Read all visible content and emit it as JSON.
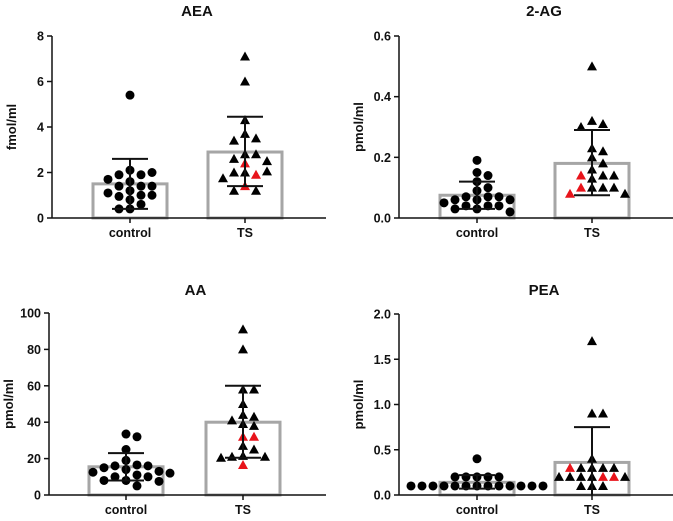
{
  "colors": {
    "marker": "#000000",
    "highlight": "#e8141b",
    "bar": "#a6a6a6"
  },
  "chart_data": [
    {
      "type": "bar",
      "title": "AEA",
      "ylabel": "fmol/ml",
      "ylim": [
        0,
        8
      ],
      "yticks": [
        "0",
        "2",
        "4",
        "6",
        "8"
      ],
      "ytick_values": [
        0,
        2,
        4,
        6,
        8
      ],
      "categories": [
        "control",
        "TS"
      ],
      "groups": [
        {
          "name": "control",
          "marker": "circle",
          "mean": 1.5,
          "error_bar": [
            0.4,
            2.6
          ],
          "values": [
            5.4,
            2.1,
            1.9,
            1.9,
            2.0,
            1.6,
            1.7,
            1.4,
            1.4,
            1.4,
            1.2,
            1.1,
            1.0,
            0.95,
            1.0,
            0.8,
            0.6,
            0.4,
            0.4
          ],
          "highlighted": []
        },
        {
          "name": "TS",
          "marker": "triangle",
          "mean": 2.9,
          "error_bar": [
            1.4,
            4.45
          ],
          "values": [
            7.1,
            6.0,
            4.3,
            3.7,
            3.5,
            3.4,
            2.8,
            2.8,
            2.6,
            2.4,
            2.5,
            2.0,
            1.9,
            2.0,
            2.05,
            1.75,
            1.4,
            1.2,
            1.2
          ],
          "highlighted": [
            9,
            12,
            16
          ]
        }
      ]
    },
    {
      "type": "bar",
      "title": "2-AG",
      "ylabel": "pmol/ml",
      "ylim": [
        0,
        0.6
      ],
      "yticks": [
        "0.0",
        "0.2",
        "0.4",
        "0.6"
      ],
      "ytick_values": [
        0,
        0.2,
        0.4,
        0.6
      ],
      "categories": [
        "control",
        "TS"
      ],
      "groups": [
        {
          "name": "control",
          "marker": "circle",
          "mean": 0.075,
          "error_bar": [
            0.03,
            0.12
          ],
          "values": [
            0.19,
            0.15,
            0.14,
            0.12,
            0.1,
            0.09,
            0.07,
            0.07,
            0.07,
            0.06,
            0.06,
            0.06,
            0.05,
            0.04,
            0.04,
            0.04,
            0.03,
            0.03,
            0.02
          ],
          "highlighted": []
        },
        {
          "name": "TS",
          "marker": "triangle",
          "mean": 0.18,
          "error_bar": [
            0.075,
            0.29
          ],
          "values": [
            0.5,
            0.32,
            0.31,
            0.3,
            0.23,
            0.22,
            0.2,
            0.18,
            0.16,
            0.14,
            0.14,
            0.14,
            0.13,
            0.1,
            0.1,
            0.1,
            0.1,
            0.08,
            0.08
          ],
          "highlighted": [
            10,
            15,
            17
          ]
        }
      ]
    },
    {
      "type": "bar",
      "title": "AA",
      "ylabel": "pmol/ml",
      "ylim": [
        0,
        100
      ],
      "yticks": [
        "0",
        "20",
        "40",
        "60",
        "80",
        "100"
      ],
      "ytick_values": [
        0,
        20,
        40,
        60,
        80,
        100
      ],
      "categories": [
        "control",
        "TS"
      ],
      "groups": [
        {
          "name": "control",
          "marker": "circle",
          "mean": 15.5,
          "error_bar": [
            8,
            23
          ],
          "values": [
            33.5,
            32,
            25,
            19,
            16.5,
            16,
            16,
            15,
            14,
            13,
            12.5,
            12,
            11,
            10,
            10,
            8,
            8,
            7.5,
            5
          ],
          "highlighted": []
        },
        {
          "name": "TS",
          "marker": "triangle",
          "mean": 40,
          "error_bar": [
            20.5,
            60
          ],
          "values": [
            91,
            80,
            58,
            58,
            50,
            44,
            43,
            41,
            39,
            38,
            32,
            32,
            27,
            25,
            21.5,
            21,
            21,
            20.5,
            16.5
          ],
          "highlighted": [
            10,
            11,
            18
          ]
        }
      ]
    },
    {
      "type": "bar",
      "title": "PEA",
      "ylabel": "pmol/ml",
      "ylim": [
        0,
        2.0
      ],
      "yticks": [
        "0.0",
        "0.5",
        "1.0",
        "1.5",
        "2.0"
      ],
      "ytick_values": [
        0,
        0.5,
        1.0,
        1.5,
        2.0
      ],
      "categories": [
        "control",
        "TS"
      ],
      "groups": [
        {
          "name": "control",
          "marker": "circle",
          "mean": 0.14,
          "error_bar": [
            0.07,
            0.22
          ],
          "values": [
            0.4,
            0.2,
            0.2,
            0.2,
            0.2,
            0.2,
            0.1,
            0.1,
            0.1,
            0.1,
            0.1,
            0.1,
            0.1,
            0.1,
            0.1,
            0.1,
            0.1,
            0.1,
            0.1
          ],
          "highlighted": []
        },
        {
          "name": "TS",
          "marker": "triangle",
          "mean": 0.36,
          "error_bar": [
            0.0,
            0.75
          ],
          "values": [
            1.7,
            0.9,
            0.9,
            0.4,
            0.3,
            0.3,
            0.3,
            0.3,
            0.3,
            0.2,
            0.2,
            0.2,
            0.2,
            0.2,
            0.2,
            0.2,
            0.1,
            0.1,
            0.1
          ],
          "highlighted": [
            8,
            10,
            12
          ]
        }
      ]
    }
  ]
}
